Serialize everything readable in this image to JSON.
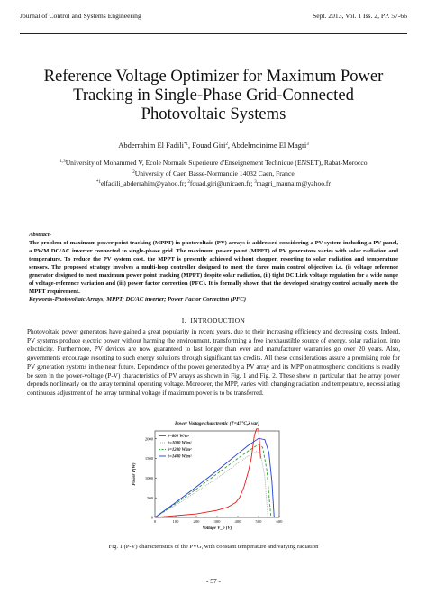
{
  "header": {
    "journal": "Journal of Control and Systems Engineering",
    "issue": "Sept. 2013, Vol. 1 Iss. 2, PP. 57-66"
  },
  "title": {
    "line1": "Reference Voltage Optimizer for Maximum Power",
    "line2": "Tracking in Single-Phase Grid-Connected",
    "line3": "Photovoltaic Systems"
  },
  "authors": {
    "a1": "Abderrahim El Fadili",
    "a1_sup": "*1",
    "a2": ", Fouad Giri",
    "a2_sup": "2",
    "a3": ", Abdelmoinime El Magri",
    "a3_sup": "3"
  },
  "affiliations": {
    "sup1": "1,3",
    "line1": "University of Mohammed V, Ecole Normale Superieure d'Enseignement Technique (ENSET), Rabat-Morocco",
    "sup2": "2",
    "line2": "University of Caen Basse-Normandie 14032 Caen, France",
    "email_sup1": "*1",
    "email1": "elfadili_abderrahim@yahoo.fr; ",
    "email_sup2": "2",
    "email2": "fouad.giri@unicaen.fr; ",
    "email_sup3": "3",
    "email3": "magri_maunaim@yahoo.fr"
  },
  "abstract": {
    "label": "Abstract-",
    "text": "The problem of maximum power point tracking (MPPT) in photovoltaic (PV) arrays is addressed considering a PV system including a PV panel, a PWM DC/AC inverter connected to single-phase grid. The maximum power point (MPPT) of PV generators varies with solar radiation and temperature. To reduce the PV system cost, the MPPT is presently achieved without chopper, resorting to solar radiation and temperature sensors. The proposed strategy involves a multi-loop controller designed to meet the three main control objectives i.e. (i) voltage reference generator designed to meet maximum power point tracking (MPPT) despite solar radiation, (ii) tight DC Link voltage regulation for a wide range of voltage-reference variation and (iii) power factor correction (PFC). It is formally shown that the developed strategy control actually meets the MPPT requirement.",
    "keywords": "Keywords-Photovoltaic Arrays; MPPT; DC/AC inverter; Power Factor Correction (PFC)"
  },
  "section": {
    "number": "I.",
    "title": "INTRODUCTION"
  },
  "intro_text": "Photovoltaic power generators have gained a great popularity in recent years, due to their increasing efficiency and decreasing costs. Indeed, PV systems produce electric power without harming the environment, transforming a free inexhaustible source of energy, solar radiation, into electricity. Furthermore, PV devices are now guaranteed to last longer than ever and manufacturer warranties go over 20 years. Also, governments encourage resorting to such energy solutions through significant tax credits. All these considerations assure a promising role for PV generation systems in the near future. Dependence of the power generated by a PV array and its MPP on atmospheric conditions is readily be seen in the power-voltage (P-V) characteristics of PV arrays as shown in Fig. 1 and Fig. 2. These show in particular that the array power depends nonlinearly on the array terminal operating voltage. Moreover, the MPP, varies with changing radiation and temperature, necessitating continuous adjustment of the array terminal voltage if maximum power is to be transferred.",
  "chart_data": {
    "type": "line",
    "title": "Power Voltage charctrestic (T=45°C,λ var)",
    "xlabel": "Voltage V_p (V)",
    "ylabel": "Power P(W)",
    "xlim": [
      0,
      600
    ],
    "ylim": [
      0,
      2200
    ],
    "xticks": [
      0,
      100,
      200,
      300,
      400,
      500,
      600
    ],
    "yticks": [
      0,
      500,
      1000,
      1500,
      2000
    ],
    "legend_position": "top-left",
    "series": [
      {
        "name": "λ=800 W/m²",
        "color": "#e31a1c",
        "style": "solid",
        "x": [
          0,
          200,
          300,
          350,
          390,
          410,
          430,
          450,
          465
        ],
        "y": [
          0,
          90,
          180,
          260,
          380,
          520,
          780,
          1150,
          1500
        ]
      },
      {
        "name": "λ=1000 W/m²",
        "color": "#999999",
        "style": "dotted",
        "x": [
          0,
          100,
          200,
          300,
          400,
          450,
          490,
          510,
          530,
          545
        ],
        "y": [
          0,
          310,
          650,
          1000,
          1380,
          1560,
          1680,
          1600,
          1050,
          0
        ]
      },
      {
        "name": "λ=1200 W/m²",
        "color": "#2ca02c",
        "style": "dashed",
        "x": [
          0,
          100,
          200,
          300,
          400,
          450,
          500,
          520,
          540,
          560
        ],
        "y": [
          0,
          350,
          720,
          1110,
          1500,
          1690,
          1860,
          1780,
          1200,
          0
        ]
      },
      {
        "name": "λ=1400 W/m²",
        "color": "#1f3fd6",
        "style": "solid",
        "x": [
          0,
          100,
          200,
          300,
          400,
          450,
          500,
          530,
          550,
          565,
          575
        ],
        "y": [
          0,
          380,
          780,
          1190,
          1620,
          1830,
          2010,
          1980,
          1650,
          900,
          0
        ]
      },
      {
        "name": "",
        "color": "#e31a1c",
        "style": "solid",
        "x": [
          465,
          480,
          490,
          500,
          510
        ],
        "y": [
          1500,
          2090,
          2250,
          2250,
          1500
        ]
      }
    ]
  },
  "caption": "Fig. 1 (P-V) characteristics of the PVG, with constant temperature and varying radiation",
  "page_number": "- 57 -"
}
